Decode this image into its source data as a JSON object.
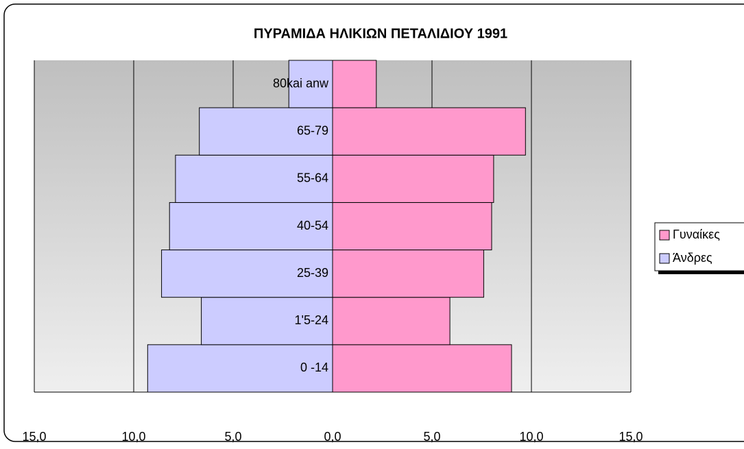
{
  "chart_data": {
    "type": "bar",
    "orientation": "horizontal",
    "title": "ΠΥΡΑΜΙΔΑ ΗΛΙΚΙΩΝ ΠΕΤΑΛΙΔΙΟΥ 1991",
    "categories": [
      "0 -14",
      "1'5-24",
      "25-39",
      "40-54",
      "55-64",
      "65-79",
      "80kai anw"
    ],
    "series": [
      {
        "name": "Γυναίκες",
        "color": "#ff99cc",
        "values": [
          9.0,
          5.9,
          7.6,
          8.0,
          8.1,
          9.7,
          2.2
        ]
      },
      {
        "name": "Άνδρες",
        "color": "#ccccff",
        "values": [
          -9.3,
          -6.6,
          -8.6,
          -8.2,
          -7.9,
          -6.7,
          -2.2
        ]
      }
    ],
    "xlim": [
      -15,
      15
    ],
    "xticks": [
      {
        "value": -15,
        "label": "15,0"
      },
      {
        "value": -10,
        "label": "10,0"
      },
      {
        "value": -5,
        "label": "5,0"
      },
      {
        "value": 0,
        "label": "0,0"
      },
      {
        "value": 5,
        "label": "5,0"
      },
      {
        "value": 10,
        "label": "10,0"
      },
      {
        "value": 15,
        "label": "15,0"
      }
    ],
    "grid": true,
    "legend": "right"
  }
}
